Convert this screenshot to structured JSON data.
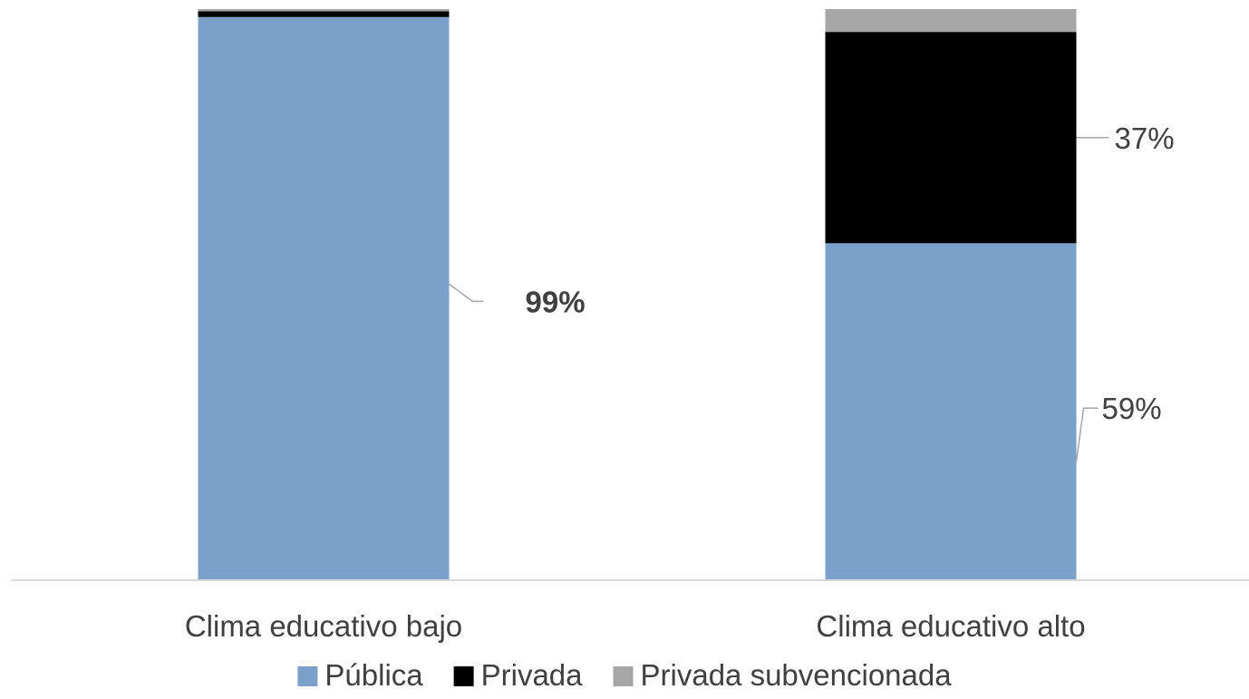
{
  "chart_data": {
    "type": "bar",
    "stacked": true,
    "percent_stacked": true,
    "categories": [
      "Clima educativo bajo",
      "Clima educativo alto"
    ],
    "series": [
      {
        "name": "Pública",
        "values": [
          99,
          59
        ],
        "color": "#7ba0c9"
      },
      {
        "name": "Privada",
        "values": [
          1,
          37
        ],
        "color": "#000000"
      },
      {
        "name": "Privada subvencionada",
        "values": [
          0.4,
          4
        ],
        "color": "#a6a6a6"
      }
    ],
    "data_labels": [
      {
        "category": "Clima educativo bajo",
        "series": "Pública",
        "text": "99%",
        "bold": true
      },
      {
        "category": "Clima educativo alto",
        "series": "Privada",
        "text": "37%",
        "bold": false
      },
      {
        "category": "Clima educativo alto",
        "series": "Pública",
        "text": "59%",
        "bold": false
      }
    ],
    "ylim": [
      0,
      100
    ],
    "grid": false,
    "legend_position": "bottom"
  },
  "colors": {
    "axis": "#d9d9d9",
    "text": "#404040",
    "leader": "#a6a6a6"
  }
}
